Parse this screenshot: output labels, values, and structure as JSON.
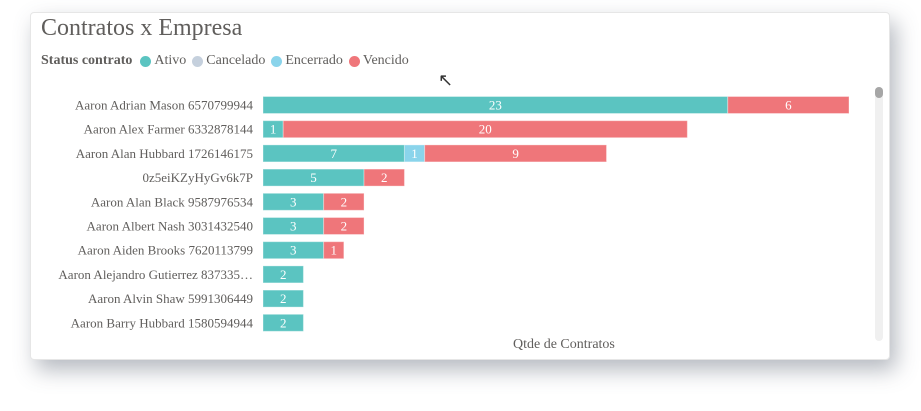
{
  "chart_data": {
    "type": "bar",
    "orientation": "horizontal",
    "stacked": true,
    "title": "Contratos x Empresa",
    "legend_title": "Status contrato",
    "legend_position": "top-left",
    "xlabel": "Qtde de Contratos",
    "categories": [
      "Aaron Adrian Mason 6570799944",
      "Aaron Alex Farmer 6332878144",
      "Aaron Alan Hubbard 1726146175",
      "0z5eiKZyHyGv6k7P",
      "Aaron Alan Black 9587976534",
      "Aaron Albert Nash 3031432540",
      "Aaron Aiden Brooks 7620113799",
      "Aaron Alejandro Gutierrez 837335…",
      "Aaron Alvin Shaw 5991306449",
      "Aaron Barry Hubbard 1580594944"
    ],
    "series": [
      {
        "name": "Ativo",
        "color": "#5bc4c1",
        "values": [
          23,
          1,
          7,
          5,
          3,
          3,
          3,
          2,
          2,
          2
        ]
      },
      {
        "name": "Cancelado",
        "color": "#c5d0dd",
        "values": [
          0,
          0,
          0,
          0,
          0,
          0,
          0,
          0,
          0,
          0
        ]
      },
      {
        "name": "Encerrado",
        "color": "#8ad4eb",
        "values": [
          0,
          0,
          1,
          0,
          0,
          0,
          0,
          0,
          0,
          0
        ]
      },
      {
        "name": "Vencido",
        "color": "#ef767a",
        "values": [
          6,
          20,
          9,
          2,
          2,
          2,
          1,
          0,
          0,
          0
        ]
      }
    ],
    "xlim": [
      0,
      29
    ],
    "grid": false,
    "data_labels": true
  }
}
